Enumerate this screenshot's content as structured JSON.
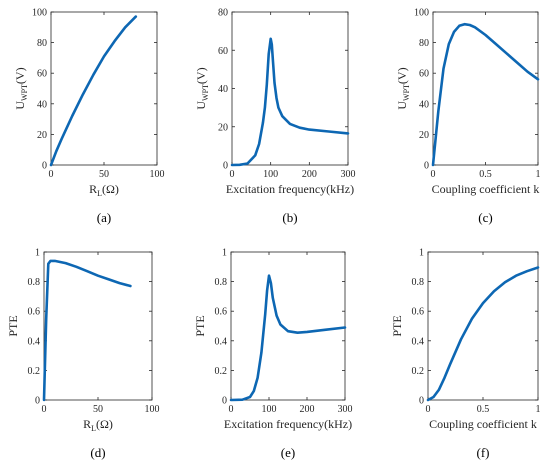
{
  "colors": {
    "line": "#0d67b3",
    "axis": "#262626",
    "background": "#ffffff"
  },
  "chart_data": [
    {
      "type": "line",
      "panel_label": "(a)",
      "xlabel": "R",
      "xlabel_sub": "L",
      "xlabel_suffix": "(Ω)",
      "ylabel": "U",
      "ylabel_sub": "WPT",
      "ylabel_suffix": "(V)",
      "xlim": [
        0,
        100
      ],
      "ylim": [
        0,
        100
      ],
      "xticks": [
        0,
        50,
        100
      ],
      "yticks": [
        0,
        20,
        40,
        60,
        80,
        100
      ],
      "grid": false,
      "x": [
        0,
        5,
        10,
        20,
        30,
        40,
        50,
        60,
        70,
        80
      ],
      "y": [
        0,
        9,
        17,
        32,
        46,
        59,
        71,
        81,
        90,
        97
      ]
    },
    {
      "type": "line",
      "panel_label": "(b)",
      "xlabel": "Excitation frequency(kHz)",
      "xlabel_sub": "",
      "xlabel_suffix": "",
      "ylabel": "U",
      "ylabel_sub": "WPT",
      "ylabel_suffix": "(V)",
      "xlim": [
        0,
        300
      ],
      "ylim": [
        0,
        80
      ],
      "xticks": [
        0,
        100,
        200,
        300
      ],
      "yticks": [
        0,
        20,
        40,
        60,
        80
      ],
      "grid": false,
      "x": [
        0,
        20,
        40,
        60,
        70,
        80,
        85,
        90,
        95,
        100,
        103,
        106,
        110,
        115,
        120,
        130,
        150,
        175,
        200,
        250,
        300
      ],
      "y": [
        0,
        0.1,
        0.8,
        5,
        11,
        22,
        30,
        42,
        58,
        66,
        63,
        54,
        43,
        35,
        30,
        25.5,
        21.5,
        19.5,
        18.5,
        17.5,
        16.5
      ]
    },
    {
      "type": "line",
      "panel_label": "(c)",
      "xlabel": "Coupling coefficient k",
      "xlabel_sub": "",
      "xlabel_suffix": "",
      "ylabel": "U",
      "ylabel_sub": "WPT",
      "ylabel_suffix": "(V)",
      "xlim": [
        0,
        1
      ],
      "ylim": [
        0,
        100
      ],
      "xticks": [
        0,
        0.5,
        1
      ],
      "yticks": [
        0,
        20,
        40,
        60,
        80,
        100
      ],
      "grid": false,
      "x": [
        0,
        0.05,
        0.1,
        0.15,
        0.2,
        0.25,
        0.3,
        0.35,
        0.4,
        0.5,
        0.6,
        0.7,
        0.8,
        0.9,
        1.0
      ],
      "y": [
        0,
        35,
        63,
        79,
        87,
        91,
        92,
        91.5,
        90,
        85,
        79,
        73,
        67,
        61,
        56
      ]
    },
    {
      "type": "line",
      "panel_label": "(d)",
      "xlabel": "R",
      "xlabel_sub": "L",
      "xlabel_suffix": "(Ω)",
      "ylabel": "PTE",
      "ylabel_sub": "",
      "ylabel_suffix": "",
      "xlim": [
        0,
        100
      ],
      "ylim": [
        0,
        1
      ],
      "xticks": [
        0,
        50,
        100
      ],
      "yticks": [
        0,
        0.2,
        0.4,
        0.6,
        0.8,
        1
      ],
      "grid": false,
      "x": [
        0,
        2,
        4,
        6,
        10,
        20,
        30,
        40,
        50,
        60,
        70,
        80
      ],
      "y": [
        0,
        0.55,
        0.92,
        0.94,
        0.94,
        0.925,
        0.9,
        0.87,
        0.84,
        0.815,
        0.79,
        0.77
      ]
    },
    {
      "type": "line",
      "panel_label": "(e)",
      "xlabel": "Excitation frequency(kHz)",
      "xlabel_sub": "",
      "xlabel_suffix": "",
      "ylabel": "PTE",
      "ylabel_sub": "",
      "ylabel_suffix": "",
      "xlim": [
        0,
        300
      ],
      "ylim": [
        0,
        1
      ],
      "xticks": [
        0,
        100,
        200,
        300
      ],
      "yticks": [
        0,
        0.2,
        0.4,
        0.6,
        0.8,
        1
      ],
      "grid": false,
      "x": [
        0,
        30,
        50,
        60,
        70,
        80,
        90,
        95,
        100,
        105,
        110,
        120,
        130,
        150,
        175,
        200,
        250,
        300
      ],
      "y": [
        0,
        0.002,
        0.02,
        0.06,
        0.15,
        0.32,
        0.58,
        0.74,
        0.84,
        0.79,
        0.69,
        0.57,
        0.51,
        0.465,
        0.455,
        0.46,
        0.475,
        0.49
      ]
    },
    {
      "type": "line",
      "panel_label": "(f)",
      "xlabel": "Coupling coefficient k",
      "xlabel_sub": "",
      "xlabel_suffix": "",
      "ylabel": "PTE",
      "ylabel_sub": "",
      "ylabel_suffix": "",
      "xlim": [
        0,
        1
      ],
      "ylim": [
        0,
        1
      ],
      "xticks": [
        0,
        0.5,
        1
      ],
      "yticks": [
        0,
        0.2,
        0.4,
        0.6,
        0.8,
        1
      ],
      "grid": false,
      "x": [
        0,
        0.05,
        0.1,
        0.15,
        0.2,
        0.3,
        0.4,
        0.5,
        0.6,
        0.7,
        0.8,
        0.9,
        1.0
      ],
      "y": [
        0,
        0.02,
        0.07,
        0.15,
        0.24,
        0.41,
        0.55,
        0.655,
        0.735,
        0.795,
        0.84,
        0.87,
        0.895
      ]
    }
  ]
}
